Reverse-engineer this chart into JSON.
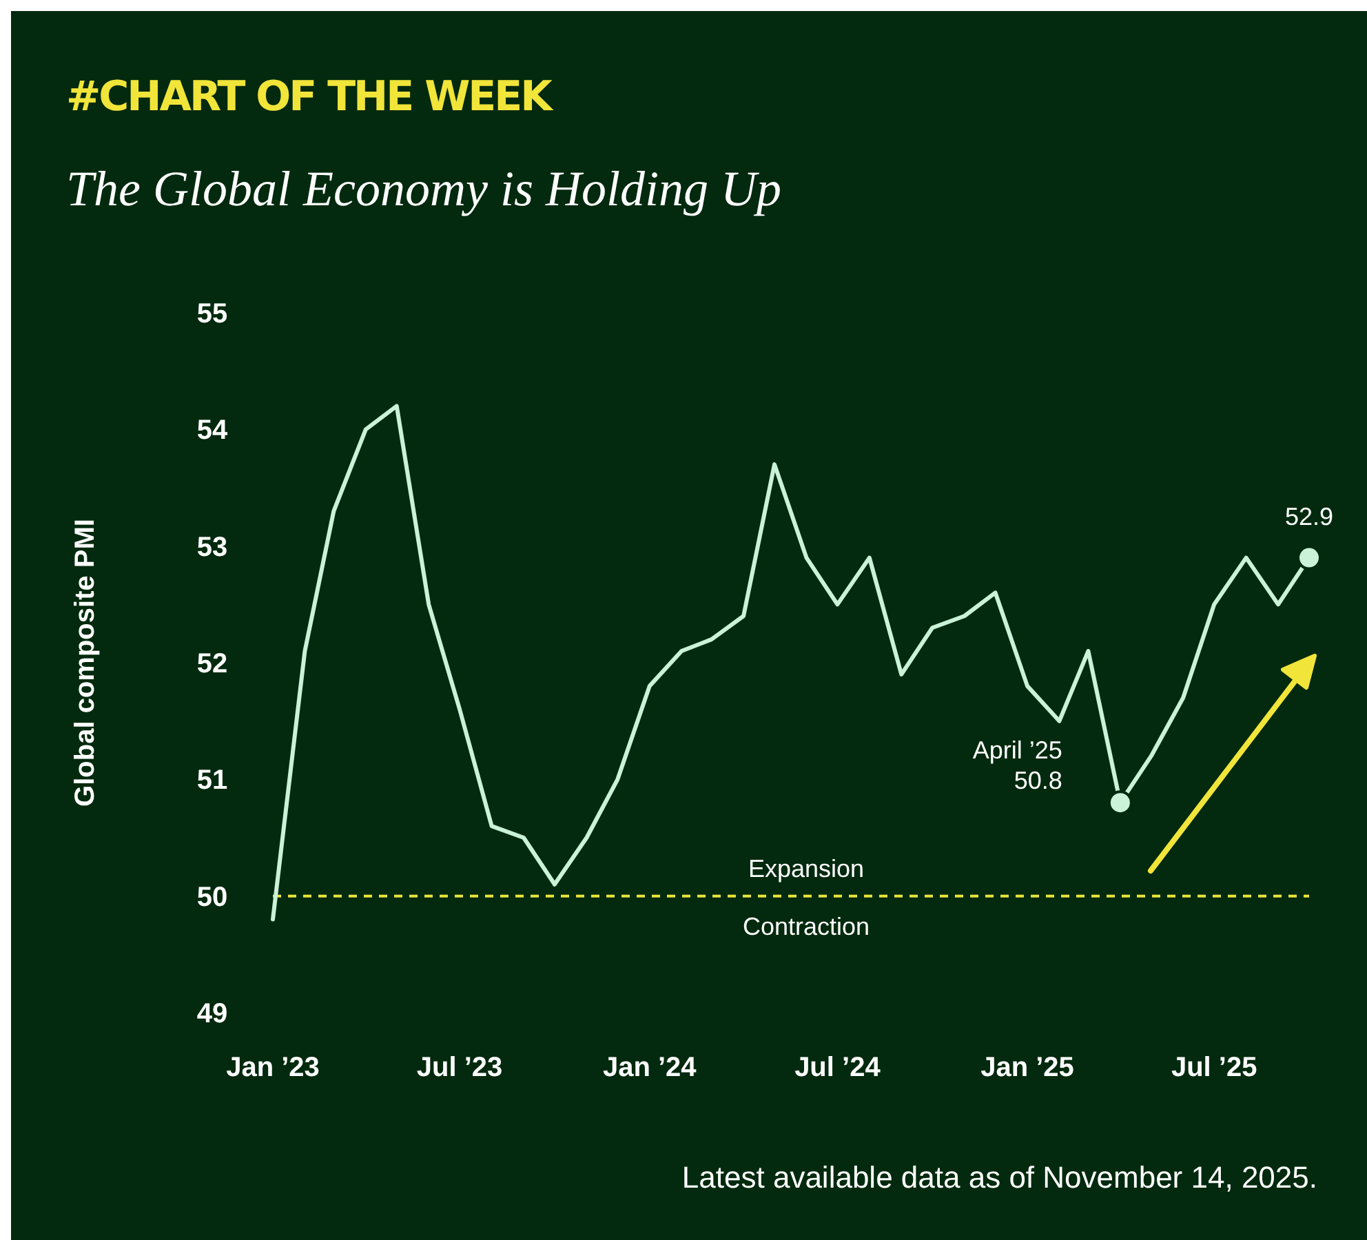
{
  "chart_data": {
    "type": "line",
    "title": "#CHART OF THE WEEK",
    "subtitle": "The Global Economy is Holding Up",
    "ylabel": "Global composite PMI",
    "x": [
      "2023-01",
      "2023-02",
      "2023-03",
      "2023-04",
      "2023-05",
      "2023-06",
      "2023-07",
      "2023-08",
      "2023-09",
      "2023-10",
      "2023-11",
      "2023-12",
      "2024-01",
      "2024-02",
      "2024-03",
      "2024-04",
      "2024-05",
      "2024-06",
      "2024-07",
      "2024-08",
      "2024-09",
      "2024-10",
      "2024-11",
      "2024-12",
      "2025-01",
      "2025-02",
      "2025-03",
      "2025-04",
      "2025-05",
      "2025-06",
      "2025-07",
      "2025-08",
      "2025-09",
      "2025-10"
    ],
    "series": [
      {
        "color": "#c9f2d9",
        "values": [
          49.8,
          52.1,
          53.3,
          54.0,
          54.2,
          52.5,
          51.6,
          50.6,
          50.5,
          50.1,
          50.5,
          51.0,
          51.8,
          52.1,
          52.2,
          52.4,
          53.7,
          52.9,
          52.5,
          52.9,
          51.9,
          52.3,
          52.4,
          52.6,
          51.8,
          51.5,
          52.1,
          50.8,
          51.2,
          51.7,
          52.5,
          52.9,
          52.5,
          52.9
        ]
      }
    ],
    "xlim": [
      "2023-01",
      "2025-10"
    ],
    "xticks": [
      {
        "value": "2023-01",
        "label": "Jan ’23"
      },
      {
        "value": "2023-07",
        "label": "Jul ’23"
      },
      {
        "value": "2024-01",
        "label": "Jan ’24"
      },
      {
        "value": "2024-07",
        "label": "Jul ’24"
      },
      {
        "value": "2025-01",
        "label": "Jan ’25"
      },
      {
        "value": "2025-07",
        "label": "Jul ’25"
      }
    ],
    "ylim": [
      49,
      55
    ],
    "yticks": [
      49,
      50,
      51,
      52,
      53,
      54,
      55
    ],
    "grid": false,
    "marker": "none",
    "line_style": "solid",
    "ref_lines": [
      {
        "axis": "y",
        "value": 50,
        "color": "#e9e33a",
        "line_style": "dashed"
      }
    ],
    "annotations": [
      {
        "text": "April ’25\n50.8",
        "x": "2025-04",
        "y": 50.8
      },
      {
        "text": "52.9",
        "x": "2025-10",
        "y": 52.9
      },
      "Expansion",
      "Contraction",
      "Latest available data as of November 14, 2025."
    ]
  }
}
